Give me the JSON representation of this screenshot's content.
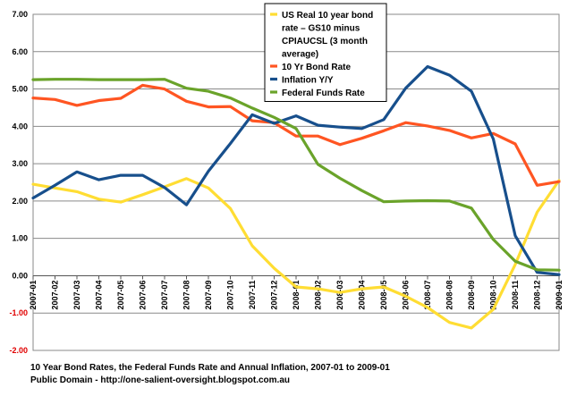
{
  "chart_data": {
    "type": "line",
    "title": "10 Year Bond Rates, the Federal Funds Rate and Annual Inflation, 2007-01 to 2009-01",
    "xlabel": "",
    "ylabel": "",
    "ylim": [
      -2,
      7
    ],
    "yticks": [
      "7.00",
      "6.00",
      "5.00",
      "4.00",
      "3.00",
      "2.00",
      "1.00",
      "0.00",
      "-1.00",
      "-2.00"
    ],
    "grid": true,
    "legend_position": "top-right",
    "categories": [
      "2007-01",
      "2007-02",
      "2007-03",
      "2007-04",
      "2007-05",
      "2007-06",
      "2007-07",
      "2007-08",
      "2007-09",
      "2007-10",
      "2007-11",
      "2007-12",
      "2008-01",
      "2008-02",
      "2008-03",
      "2008-04",
      "2008-05",
      "2008-06",
      "2008-07",
      "2008-08",
      "2008-09",
      "2008-10",
      "2008-11",
      "2008-12",
      "2009-01"
    ],
    "series": [
      {
        "name": "US Real 10 year bond rate – GS10 minus CPIAUCSL (3 month average)",
        "legend_lines": [
          "US Real 10 year bond",
          "rate – GS10 minus",
          "CPIAUCSL (3 month",
          "average)"
        ],
        "color": "#ffdd33",
        "values": [
          2.45,
          2.35,
          2.25,
          2.05,
          1.97,
          2.17,
          2.38,
          2.6,
          2.35,
          1.8,
          0.8,
          0.2,
          -0.3,
          -0.35,
          -0.45,
          -0.35,
          -0.3,
          -0.55,
          -0.85,
          -1.25,
          -1.4,
          -0.9,
          0.3,
          1.7,
          2.55
        ]
      },
      {
        "name": "10 Yr Bond Rate",
        "legend_lines": [
          "10 Yr Bond Rate"
        ],
        "color": "#ff5522",
        "values": [
          4.76,
          4.72,
          4.56,
          4.69,
          4.75,
          5.1,
          5.0,
          4.67,
          4.52,
          4.53,
          4.15,
          4.1,
          3.74,
          3.74,
          3.51,
          3.68,
          3.88,
          4.1,
          4.01,
          3.89,
          3.69,
          3.81,
          3.53,
          2.42,
          2.52
        ]
      },
      {
        "name": "Inflation Y/Y",
        "legend_lines": [
          "Inflation Y/Y"
        ],
        "color": "#174f8c",
        "values": [
          2.08,
          2.42,
          2.78,
          2.57,
          2.69,
          2.69,
          2.36,
          1.9,
          2.8,
          3.54,
          4.31,
          4.08,
          4.28,
          4.03,
          3.98,
          3.94,
          4.18,
          5.02,
          5.6,
          5.37,
          4.94,
          3.66,
          1.07,
          0.09,
          0.03
        ]
      },
      {
        "name": "Federal Funds Rate",
        "legend_lines": [
          "Federal Funds Rate"
        ],
        "color": "#6aa32a",
        "values": [
          5.25,
          5.26,
          5.26,
          5.25,
          5.25,
          5.25,
          5.26,
          5.02,
          4.94,
          4.76,
          4.49,
          4.24,
          3.94,
          2.98,
          2.61,
          2.28,
          1.98,
          2.0,
          2.01,
          2.0,
          1.81,
          0.97,
          0.39,
          0.16,
          0.15
        ]
      }
    ],
    "caption_lines": [
      "10 Year Bond Rates, the Federal Funds Rate and Annual Inflation, 2007-01 to 2009-01",
      "Public Domain - http://one-salient-oversight.blogspot.com.au"
    ]
  }
}
